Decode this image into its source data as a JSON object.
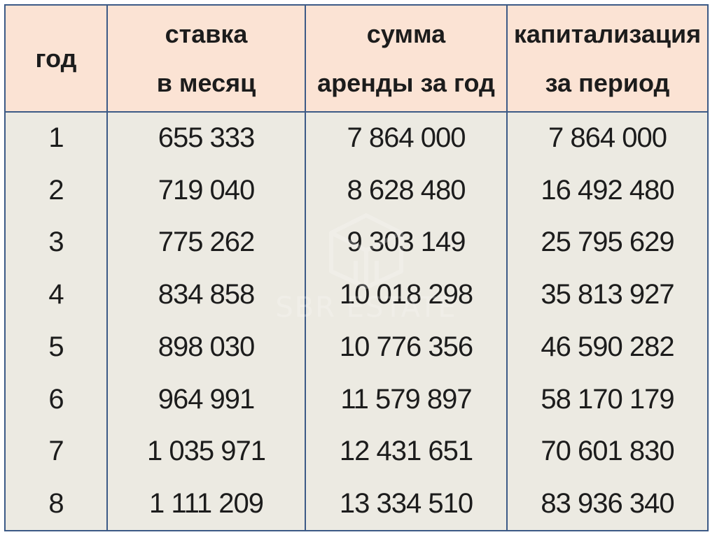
{
  "table": {
    "headers": [
      [
        "год"
      ],
      [
        "ставка",
        "в месяц"
      ],
      [
        "сумма",
        "аренды за год"
      ],
      [
        "капитализация",
        "за период"
      ]
    ],
    "rows": [
      [
        "1",
        "655 333",
        "7 864 000",
        "7 864 000"
      ],
      [
        "2",
        "719 040",
        "8 628 480",
        "16 492 480"
      ],
      [
        "3",
        "775 262",
        "9 303 149",
        "25 795 629"
      ],
      [
        "4",
        "834 858",
        "10 018 298",
        "35 813 927"
      ],
      [
        "5",
        "898 030",
        "10 776 356",
        "46 590 282"
      ],
      [
        "6",
        "964 991",
        "11 579 897",
        "58 170 179"
      ],
      [
        "7",
        "1 035 971",
        "12 431 651",
        "70 601 830"
      ],
      [
        "8",
        "1 111 209",
        "13 334 510",
        "83 936 340"
      ]
    ]
  },
  "watermark": {
    "text": "SBR ESTATE",
    "icon": "building-cube-logo-icon"
  },
  "colors": {
    "header_bg": "#fbe3d4",
    "body_bg": "#eceae2",
    "border": "#3c5a86"
  }
}
